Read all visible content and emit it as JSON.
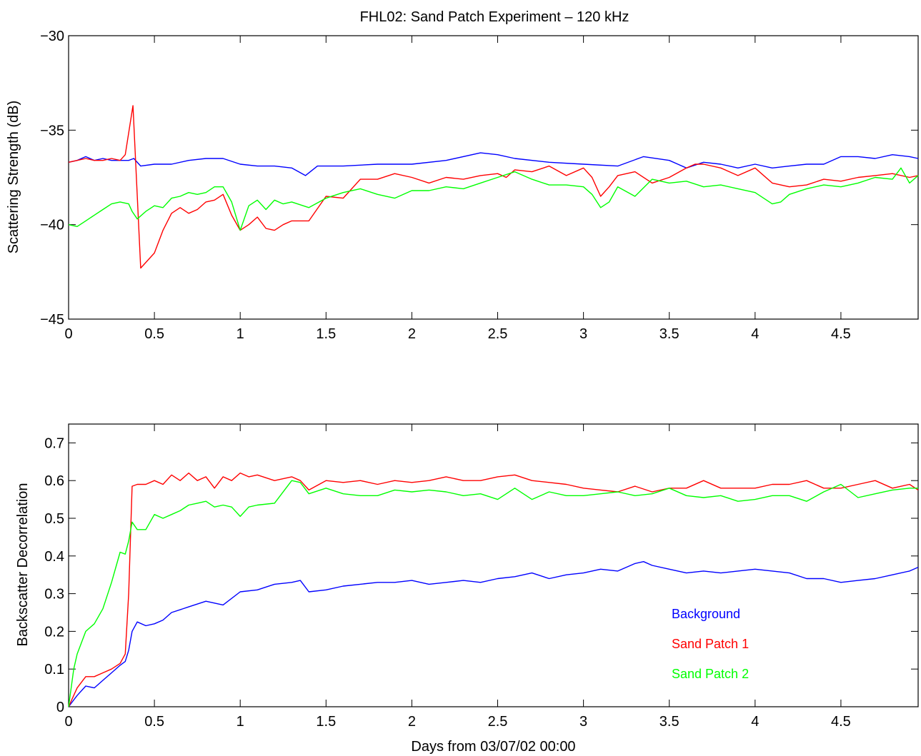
{
  "figure": {
    "title": "FHL02: Sand Patch Experiment – 120 kHz"
  },
  "chart_data": [
    {
      "type": "line",
      "title": "FHL02: Sand Patch Experiment – 120 kHz",
      "xlabel": "",
      "ylabel": "Scattering Strength (dB)",
      "xlim": [
        0,
        4.95
      ],
      "ylim": [
        -45,
        -30
      ],
      "x_ticks": [
        0,
        0.5,
        1,
        1.5,
        2,
        2.5,
        3,
        3.5,
        4,
        4.5
      ],
      "x_tick_labels": [
        "0",
        "0.5",
        "1",
        "1.5",
        "2",
        "2.5",
        "3",
        "3.5",
        "4",
        "4.5"
      ],
      "y_ticks": [
        -45,
        -40,
        -35,
        -30
      ],
      "y_tick_labels": [
        "−45",
        "−40",
        "−35",
        "−30"
      ],
      "grid": false,
      "series": [
        {
          "color": "#0000ff",
          "x": [
            0,
            0.05,
            0.1,
            0.15,
            0.2,
            0.25,
            0.3,
            0.35,
            0.38,
            0.42,
            0.5,
            0.6,
            0.7,
            0.8,
            0.9,
            1.0,
            1.1,
            1.2,
            1.3,
            1.38,
            1.45,
            1.6,
            1.8,
            2.0,
            2.2,
            2.4,
            2.5,
            2.6,
            2.8,
            3.0,
            3.2,
            3.35,
            3.5,
            3.55,
            3.6,
            3.7,
            3.8,
            3.9,
            4.0,
            4.1,
            4.2,
            4.3,
            4.4,
            4.5,
            4.6,
            4.7,
            4.8,
            4.9,
            4.95
          ],
          "y": [
            -36.7,
            -36.6,
            -36.4,
            -36.6,
            -36.5,
            -36.6,
            -36.6,
            -36.6,
            -36.5,
            -36.9,
            -36.8,
            -36.8,
            -36.6,
            -36.5,
            -36.5,
            -36.8,
            -36.9,
            -36.9,
            -37.0,
            -37.4,
            -36.9,
            -36.9,
            -36.8,
            -36.8,
            -36.6,
            -36.2,
            -36.3,
            -36.5,
            -36.7,
            -36.8,
            -36.9,
            -36.4,
            -36.6,
            -36.8,
            -37.0,
            -36.7,
            -36.8,
            -37.0,
            -36.8,
            -37.0,
            -36.9,
            -36.8,
            -36.8,
            -36.4,
            -36.4,
            -36.5,
            -36.3,
            -36.4,
            -36.5
          ]
        },
        {
          "color": "#ff0000",
          "x": [
            0,
            0.05,
            0.1,
            0.15,
            0.2,
            0.25,
            0.3,
            0.33,
            0.375,
            0.42,
            0.45,
            0.5,
            0.55,
            0.6,
            0.65,
            0.7,
            0.75,
            0.8,
            0.85,
            0.9,
            0.95,
            1.0,
            1.05,
            1.1,
            1.15,
            1.2,
            1.25,
            1.3,
            1.4,
            1.5,
            1.6,
            1.7,
            1.8,
            1.9,
            2.0,
            2.1,
            2.2,
            2.3,
            2.4,
            2.5,
            2.55,
            2.6,
            2.7,
            2.8,
            2.9,
            3.0,
            3.05,
            3.1,
            3.15,
            3.2,
            3.3,
            3.4,
            3.5,
            3.6,
            3.65,
            3.7,
            3.8,
            3.9,
            4.0,
            4.1,
            4.2,
            4.3,
            4.4,
            4.5,
            4.6,
            4.7,
            4.8,
            4.9,
            4.95
          ],
          "y": [
            -36.7,
            -36.6,
            -36.5,
            -36.6,
            -36.6,
            -36.5,
            -36.6,
            -36.3,
            -33.7,
            -42.3,
            -42.0,
            -41.5,
            -40.3,
            -39.4,
            -39.1,
            -39.4,
            -39.2,
            -38.8,
            -38.7,
            -38.4,
            -39.5,
            -40.3,
            -40.0,
            -39.6,
            -40.2,
            -40.3,
            -40.0,
            -39.8,
            -39.8,
            -38.5,
            -38.6,
            -37.6,
            -37.6,
            -37.3,
            -37.5,
            -37.8,
            -37.5,
            -37.6,
            -37.4,
            -37.3,
            -37.5,
            -37.1,
            -37.2,
            -36.9,
            -37.4,
            -37.0,
            -37.5,
            -38.5,
            -38.0,
            -37.4,
            -37.2,
            -37.8,
            -37.5,
            -37.0,
            -36.8,
            -36.8,
            -37.0,
            -37.4,
            -37.0,
            -37.8,
            -38.0,
            -37.9,
            -37.6,
            -37.7,
            -37.5,
            -37.4,
            -37.3,
            -37.5,
            -37.4
          ]
        },
        {
          "color": "#00ff00",
          "x": [
            0,
            0.05,
            0.1,
            0.15,
            0.2,
            0.25,
            0.3,
            0.35,
            0.37,
            0.4,
            0.45,
            0.5,
            0.55,
            0.6,
            0.65,
            0.7,
            0.75,
            0.8,
            0.85,
            0.9,
            0.95,
            1.0,
            1.05,
            1.1,
            1.15,
            1.2,
            1.25,
            1.3,
            1.4,
            1.5,
            1.6,
            1.7,
            1.8,
            1.9,
            2.0,
            2.1,
            2.2,
            2.3,
            2.4,
            2.5,
            2.6,
            2.7,
            2.8,
            2.9,
            3.0,
            3.05,
            3.1,
            3.15,
            3.2,
            3.3,
            3.4,
            3.5,
            3.6,
            3.7,
            3.8,
            3.9,
            4.0,
            4.1,
            4.15,
            4.2,
            4.3,
            4.4,
            4.5,
            4.6,
            4.7,
            4.8,
            4.85,
            4.9,
            4.95
          ],
          "y": [
            -40.0,
            -40.1,
            -39.8,
            -39.5,
            -39.2,
            -38.9,
            -38.8,
            -38.9,
            -39.3,
            -39.7,
            -39.3,
            -39.0,
            -39.1,
            -38.6,
            -38.5,
            -38.3,
            -38.4,
            -38.3,
            -38.0,
            -38.0,
            -38.8,
            -40.3,
            -39.0,
            -38.7,
            -39.2,
            -38.7,
            -38.9,
            -38.8,
            -39.1,
            -38.6,
            -38.3,
            -38.1,
            -38.4,
            -38.6,
            -38.2,
            -38.2,
            -38.0,
            -38.1,
            -37.8,
            -37.5,
            -37.2,
            -37.6,
            -37.9,
            -37.9,
            -38.0,
            -38.4,
            -39.1,
            -38.8,
            -38.0,
            -38.5,
            -37.6,
            -37.8,
            -37.7,
            -38.0,
            -37.9,
            -38.1,
            -38.3,
            -38.9,
            -38.8,
            -38.4,
            -38.1,
            -37.9,
            -38.0,
            -37.8,
            -37.5,
            -37.6,
            -37.0,
            -37.8,
            -37.4
          ]
        }
      ]
    },
    {
      "type": "line",
      "title": "",
      "xlabel": "Days from 03/07/02 00:00",
      "ylabel": "Backscatter Decorrelation",
      "xlim": [
        0,
        4.95
      ],
      "ylim": [
        0,
        0.75
      ],
      "x_ticks": [
        0,
        0.5,
        1,
        1.5,
        2,
        2.5,
        3,
        3.5,
        4,
        4.5
      ],
      "x_tick_labels": [
        "0",
        "0.5",
        "1",
        "1.5",
        "2",
        "2.5",
        "3",
        "3.5",
        "4",
        "4.5"
      ],
      "y_ticks": [
        0,
        0.1,
        0.2,
        0.3,
        0.4,
        0.5,
        0.6,
        0.7
      ],
      "y_tick_labels": [
        "0",
        "0.1",
        "0.2",
        "0.3",
        "0.4",
        "0.5",
        "0.6",
        "0.7"
      ],
      "grid": false,
      "legend": {
        "placement": "lower-right, in-axes text labels"
      },
      "series": [
        {
          "name": "Background",
          "color": "#0000ff",
          "x": [
            0,
            0.05,
            0.1,
            0.15,
            0.2,
            0.25,
            0.3,
            0.33,
            0.35,
            0.37,
            0.4,
            0.45,
            0.5,
            0.55,
            0.6,
            0.7,
            0.8,
            0.9,
            1.0,
            1.1,
            1.2,
            1.3,
            1.35,
            1.4,
            1.5,
            1.6,
            1.7,
            1.8,
            1.9,
            2.0,
            2.1,
            2.2,
            2.3,
            2.4,
            2.5,
            2.6,
            2.7,
            2.8,
            2.9,
            3.0,
            3.1,
            3.2,
            3.3,
            3.35,
            3.4,
            3.5,
            3.6,
            3.7,
            3.8,
            3.9,
            4.0,
            4.1,
            4.2,
            4.3,
            4.4,
            4.5,
            4.6,
            4.7,
            4.8,
            4.9,
            4.95
          ],
          "y": [
            0.0,
            0.03,
            0.055,
            0.05,
            0.07,
            0.09,
            0.11,
            0.12,
            0.15,
            0.2,
            0.225,
            0.215,
            0.22,
            0.23,
            0.25,
            0.265,
            0.28,
            0.27,
            0.305,
            0.31,
            0.325,
            0.33,
            0.335,
            0.305,
            0.31,
            0.32,
            0.325,
            0.33,
            0.33,
            0.335,
            0.325,
            0.33,
            0.335,
            0.33,
            0.34,
            0.345,
            0.355,
            0.34,
            0.35,
            0.355,
            0.365,
            0.36,
            0.38,
            0.385,
            0.375,
            0.365,
            0.355,
            0.36,
            0.355,
            0.36,
            0.365,
            0.36,
            0.355,
            0.34,
            0.34,
            0.33,
            0.335,
            0.34,
            0.35,
            0.36,
            0.37
          ]
        },
        {
          "name": "Sand Patch 1",
          "color": "#ff0000",
          "x": [
            0,
            0.05,
            0.1,
            0.15,
            0.2,
            0.25,
            0.3,
            0.33,
            0.35,
            0.37,
            0.4,
            0.45,
            0.5,
            0.55,
            0.6,
            0.65,
            0.7,
            0.75,
            0.8,
            0.85,
            0.9,
            0.95,
            1.0,
            1.05,
            1.1,
            1.2,
            1.3,
            1.35,
            1.4,
            1.5,
            1.6,
            1.7,
            1.8,
            1.9,
            2.0,
            2.1,
            2.2,
            2.3,
            2.4,
            2.5,
            2.6,
            2.7,
            2.8,
            2.9,
            3.0,
            3.1,
            3.2,
            3.3,
            3.4,
            3.5,
            3.6,
            3.7,
            3.8,
            3.9,
            4.0,
            4.1,
            4.2,
            4.3,
            4.4,
            4.5,
            4.6,
            4.7,
            4.8,
            4.9,
            4.95
          ],
          "y": [
            0.0,
            0.05,
            0.08,
            0.08,
            0.09,
            0.1,
            0.115,
            0.14,
            0.3,
            0.585,
            0.59,
            0.59,
            0.6,
            0.59,
            0.615,
            0.6,
            0.62,
            0.6,
            0.61,
            0.58,
            0.61,
            0.6,
            0.62,
            0.61,
            0.615,
            0.6,
            0.61,
            0.6,
            0.575,
            0.6,
            0.595,
            0.6,
            0.59,
            0.6,
            0.595,
            0.6,
            0.61,
            0.6,
            0.6,
            0.61,
            0.615,
            0.6,
            0.595,
            0.59,
            0.58,
            0.575,
            0.57,
            0.585,
            0.57,
            0.58,
            0.58,
            0.6,
            0.58,
            0.58,
            0.58,
            0.59,
            0.59,
            0.6,
            0.58,
            0.58,
            0.59,
            0.6,
            0.58,
            0.59,
            0.575
          ]
        },
        {
          "name": "Sand Patch 2",
          "color": "#00ff00",
          "x": [
            0,
            0.03,
            0.05,
            0.1,
            0.15,
            0.2,
            0.25,
            0.3,
            0.33,
            0.35,
            0.37,
            0.4,
            0.45,
            0.5,
            0.55,
            0.6,
            0.65,
            0.7,
            0.75,
            0.8,
            0.85,
            0.9,
            0.95,
            1.0,
            1.05,
            1.1,
            1.2,
            1.3,
            1.35,
            1.4,
            1.5,
            1.6,
            1.7,
            1.8,
            1.9,
            2.0,
            2.1,
            2.2,
            2.3,
            2.4,
            2.5,
            2.6,
            2.7,
            2.8,
            2.9,
            3.0,
            3.1,
            3.2,
            3.3,
            3.4,
            3.5,
            3.6,
            3.7,
            3.8,
            3.9,
            4.0,
            4.1,
            4.2,
            4.3,
            4.4,
            4.5,
            4.6,
            4.7,
            4.8,
            4.9,
            4.95
          ],
          "y": [
            0.0,
            0.1,
            0.14,
            0.2,
            0.22,
            0.26,
            0.33,
            0.41,
            0.405,
            0.44,
            0.49,
            0.47,
            0.47,
            0.51,
            0.5,
            0.51,
            0.52,
            0.535,
            0.54,
            0.545,
            0.53,
            0.535,
            0.53,
            0.505,
            0.53,
            0.535,
            0.54,
            0.6,
            0.595,
            0.565,
            0.58,
            0.565,
            0.56,
            0.56,
            0.575,
            0.57,
            0.575,
            0.57,
            0.56,
            0.565,
            0.55,
            0.58,
            0.55,
            0.57,
            0.56,
            0.56,
            0.565,
            0.57,
            0.56,
            0.565,
            0.58,
            0.56,
            0.555,
            0.56,
            0.545,
            0.55,
            0.56,
            0.56,
            0.545,
            0.57,
            0.59,
            0.555,
            0.565,
            0.575,
            0.58,
            0.58
          ]
        }
      ]
    }
  ]
}
